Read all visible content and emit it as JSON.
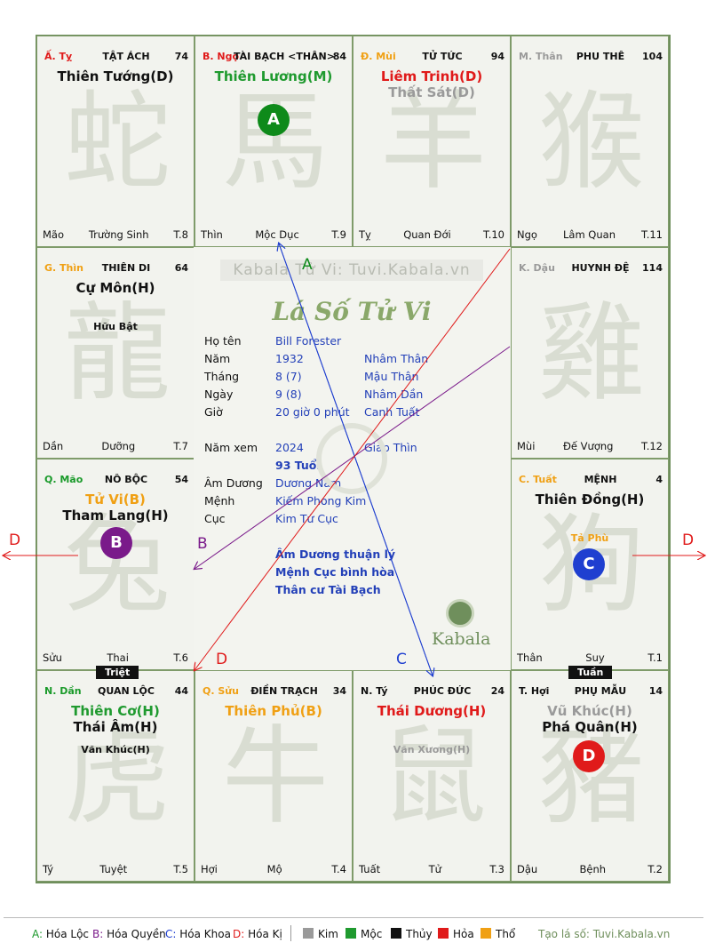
{
  "palaces": [
    {
      "id": "ty",
      "can": "Ấ. Tỵ",
      "can_color": "red",
      "name": "TẬT ÁCH",
      "num": "74",
      "stars": [
        {
          "t": "Thiên Tướng(D)",
          "c": "black"
        }
      ],
      "minor": [],
      "left": "Mão",
      "mid": "Trường Sinh",
      "right": "T.8",
      "watermark": "蛇"
    },
    {
      "id": "ngo",
      "can": "B. Ngọ",
      "can_color": "red",
      "name": "TÀI BẠCH <THÂN>",
      "num": "84",
      "stars": [
        {
          "t": "Thiên Lương(M)",
          "c": "green"
        }
      ],
      "minor": [],
      "left": "Thìn",
      "mid": "Mộc Dục",
      "right": "T.9",
      "watermark": "馬"
    },
    {
      "id": "mui",
      "can": "Đ. Mùi",
      "can_color": "orange",
      "name": "TỬ TỨC",
      "num": "94",
      "stars": [
        {
          "t": "Liêm Trinh(D)",
          "c": "red"
        },
        {
          "t": "Thất Sát(D)",
          "c": "gray"
        }
      ],
      "minor": [],
      "left": "Tỵ",
      "mid": "Quan Đới",
      "right": "T.10",
      "watermark": "羊"
    },
    {
      "id": "than",
      "can": "M. Thân",
      "can_color": "gray",
      "name": "PHU THÊ",
      "num": "104",
      "stars": [],
      "minor": [],
      "left": "Ngọ",
      "mid": "Lâm Quan",
      "right": "T.11",
      "watermark": "猴"
    },
    {
      "id": "thin",
      "can": "G. Thìn",
      "can_color": "orange",
      "name": "THIÊN DI",
      "num": "64",
      "stars": [
        {
          "t": "Cự Môn(H)",
          "c": "black"
        }
      ],
      "minor": [
        {
          "t": "Hữu Bật",
          "c": "black"
        }
      ],
      "left": "Dần",
      "mid": "Dưỡng",
      "right": "T.7",
      "watermark": "龍"
    },
    {
      "id": "dau",
      "can": "K. Dậu",
      "can_color": "gray",
      "name": "HUYNH ĐỆ",
      "num": "114",
      "stars": [],
      "minor": [],
      "left": "Mùi",
      "mid": "Đế Vượng",
      "right": "T.12",
      "watermark": "雞"
    },
    {
      "id": "mao",
      "can": "Q. Mão",
      "can_color": "green",
      "name": "NÔ BỘC",
      "num": "54",
      "stars": [
        {
          "t": "Tử Vi(B)",
          "c": "orange"
        },
        {
          "t": "Tham Lang(H)",
          "c": "black"
        }
      ],
      "minor": [],
      "left": "Sửu",
      "mid": "Thai",
      "right": "T.6",
      "watermark": "兔"
    },
    {
      "id": "tuat",
      "can": "C. Tuất",
      "can_color": "orange",
      "name": "MỆNH",
      "num": "4",
      "stars": [
        {
          "t": "Thiên Đồng(H)",
          "c": "black"
        }
      ],
      "minor": [
        {
          "t": "Tả Phù",
          "c": "orange"
        }
      ],
      "left": "Thân",
      "mid": "Suy",
      "right": "T.1",
      "watermark": "狗"
    },
    {
      "id": "dan",
      "can": "N. Dần",
      "can_color": "green",
      "name": "QUAN LỘC",
      "num": "44",
      "stars": [
        {
          "t": "Thiên Cơ(H)",
          "c": "green"
        },
        {
          "t": "Thái Âm(H)",
          "c": "black"
        }
      ],
      "minor": [
        {
          "t": "Văn Khúc(H)",
          "c": "black"
        }
      ],
      "left": "Tý",
      "mid": "Tuyệt",
      "right": "T.5",
      "watermark": "虎"
    },
    {
      "id": "suu",
      "can": "Q. Sửu",
      "can_color": "orange",
      "name": "ĐIỀN TRẠCH",
      "num": "34",
      "stars": [
        {
          "t": "Thiên Phủ(B)",
          "c": "orange"
        }
      ],
      "minor": [],
      "left": "Hợi",
      "mid": "Mộ",
      "right": "T.4",
      "watermark": "牛"
    },
    {
      "id": "tyz",
      "can": "N. Tý",
      "can_color": "black",
      "name": "PHÚC ĐỨC",
      "num": "24",
      "stars": [
        {
          "t": "Thái Dương(H)",
          "c": "red"
        }
      ],
      "minor": [
        {
          "t": "Văn Xương(H)",
          "c": "gray"
        }
      ],
      "left": "Tuất",
      "mid": "Tử",
      "right": "T.3",
      "watermark": "鼠"
    },
    {
      "id": "hoi",
      "can": "T. Hợi",
      "can_color": "black",
      "name": "PHỤ MẪU",
      "num": "14",
      "stars": [
        {
          "t": "Vũ Khúc(H)",
          "c": "gray"
        },
        {
          "t": "Phá Quân(H)",
          "c": "black"
        }
      ],
      "minor": [],
      "left": "Dậu",
      "mid": "Bệnh",
      "right": "T.2",
      "watermark": "豬"
    }
  ],
  "badges": {
    "A": "A",
    "B": "B",
    "C": "C",
    "D": "D"
  },
  "arrow_labels": {
    "A": "A",
    "B": "B",
    "C": "C",
    "D": "D"
  },
  "tags": {
    "triet": "Triệt",
    "tuan": "Tuần"
  },
  "center": {
    "brand": "Kabala Tử Vi: Tuvi.Kabala.vn",
    "title": "Lá Số Tử Vi",
    "ho_ten_lbl": "Họ tên",
    "ho_ten": "Bill Forester",
    "nam_lbl": "Năm",
    "nam": "1932",
    "nam_can": "Nhâm Thân",
    "thang_lbl": "Tháng",
    "thang": "8  (7)",
    "thang_can": "Mậu Thân",
    "ngay_lbl": "Ngày",
    "ngay": "9  (8)",
    "ngay_can": "Nhâm Dần",
    "gio_lbl": "Giờ",
    "gio": "20 giờ 0 phút",
    "gio_can": "Canh Tuất",
    "namxem_lbl": "Năm xem",
    "namxem": "2024",
    "namxem_can": "Giáp Thìn",
    "tuoi": "93 Tuổi",
    "amduong_lbl": "Âm Dương",
    "amduong": "Dương Nam",
    "menh_lbl": "Mệnh",
    "menh": "Kiếm Phong Kim",
    "cuc_lbl": "Cục",
    "cuc": "Kim Tứ Cục",
    "note1": "Âm Dương thuận lý",
    "note2": "Mệnh Cục bình hòa",
    "note3": "Thân cư Tài Bạch",
    "logo": "Kabala"
  },
  "legend": {
    "a_key": "A:",
    "a": "Hóa Lộc",
    "b_key": "B:",
    "b": "Hóa Quyền",
    "c_key": "C:",
    "c": "Hóa Khoa",
    "d_key": "D:",
    "d": "Hóa Kị",
    "kim": "Kim",
    "moc": "Mộc",
    "thuy": "Thủy",
    "hoa": "Hỏa",
    "tho": "Thổ",
    "site": "Tạo lá số: Tuvi.Kabala.vn"
  },
  "colors": {
    "red": "#e01a1a",
    "green": "#1f9a2f",
    "orange": "#f0a014",
    "gray": "#9a9a9a",
    "blue": "#1f3fd0",
    "purple": "#7a1a8a",
    "board_border": "#6f8f5c"
  }
}
